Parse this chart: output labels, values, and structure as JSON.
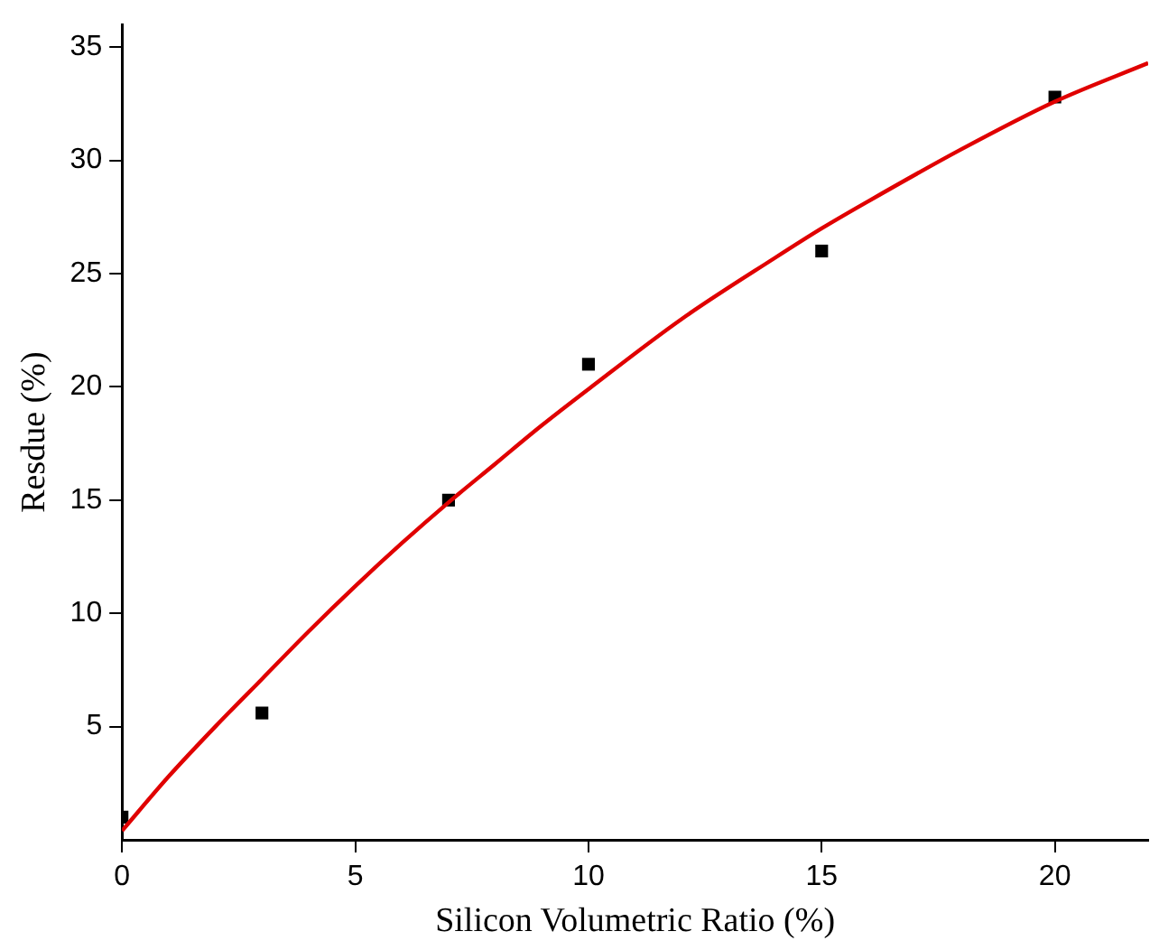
{
  "chart_data": {
    "type": "scatter",
    "xlabel": "Silicon Volumetric Ratio (%)",
    "ylabel": "Resdue (%)",
    "xlim": [
      0,
      22
    ],
    "xticks": [
      0,
      5,
      10,
      15,
      20
    ],
    "ylim": [
      0,
      36
    ],
    "yticks": [
      5,
      10,
      15,
      20,
      25,
      30,
      35
    ],
    "grid": false,
    "legend": false,
    "series": [
      {
        "color": "#000000",
        "marker": "square",
        "x": [
          0,
          3,
          7,
          10,
          15,
          20
        ],
        "values": [
          1.0,
          5.6,
          15.0,
          21.0,
          26.0,
          32.8
        ]
      },
      {
        "type": "line",
        "color": "#e00000",
        "marker": "none",
        "line_style": "solid",
        "x": [
          0,
          1,
          2,
          3,
          4,
          5,
          6,
          7,
          8,
          9,
          10,
          12,
          14,
          15,
          16,
          18,
          20,
          22
        ],
        "values": [
          0.4,
          2.8,
          5.0,
          7.1,
          9.2,
          11.2,
          13.1,
          14.9,
          16.6,
          18.3,
          19.9,
          23.0,
          25.7,
          27.0,
          28.2,
          30.5,
          32.6,
          34.3
        ]
      }
    ]
  }
}
